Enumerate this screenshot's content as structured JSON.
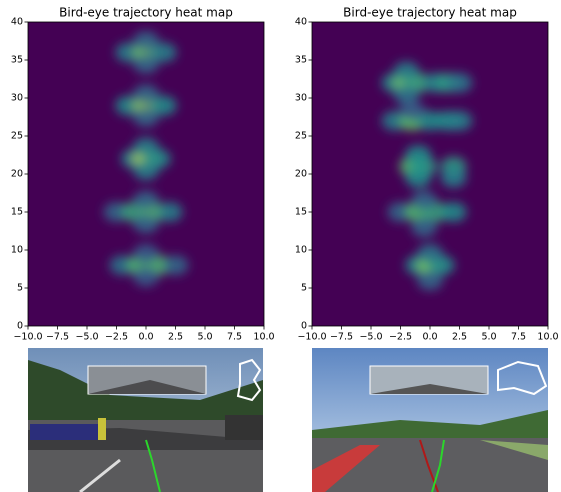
{
  "chart_data": [
    {
      "type": "heatmap",
      "title": "Bird-eye trajectory heat map",
      "colormap": "viridis",
      "x": [
        -1.5,
        0,
        1.5,
        0,
        0,
        -1.5,
        0,
        1.5,
        0,
        0,
        -1,
        0,
        1,
        0,
        0,
        -2.5,
        -1,
        0.5,
        2,
        0,
        0,
        -2,
        -0.5,
        1,
        2.5,
        0,
        0
      ],
      "y": [
        36,
        36,
        36,
        37.5,
        34.5,
        29,
        29,
        29,
        30.5,
        27.5,
        22,
        22,
        22,
        23.5,
        20.5,
        15,
        15,
        15,
        15,
        16.5,
        13.5,
        8,
        8,
        8,
        8,
        9.5,
        6.5
      ],
      "values": [
        0.45,
        0.8,
        0.45,
        0.35,
        0.35,
        0.5,
        0.85,
        0.5,
        0.35,
        0.35,
        0.5,
        0.9,
        0.5,
        0.45,
        0.45,
        0.35,
        0.6,
        0.75,
        0.45,
        0.35,
        0.35,
        0.4,
        0.7,
        0.7,
        0.35,
        0.3,
        0.3
      ],
      "xlim": [
        -10,
        10
      ],
      "ylim": [
        0,
        40
      ],
      "xticks": [
        {
          "value": -10,
          "label": "−10.0"
        },
        {
          "value": -7.5,
          "label": "−7.5"
        },
        {
          "value": -5,
          "label": "−5.0"
        },
        {
          "value": -2.5,
          "label": "−2.5"
        },
        {
          "value": 0,
          "label": "0.0"
        },
        {
          "value": 2.5,
          "label": "2.5"
        },
        {
          "value": 5,
          "label": "5.0"
        },
        {
          "value": 7.5,
          "label": "7.5"
        },
        {
          "value": 10,
          "label": "10.0"
        }
      ],
      "yticks": [
        0,
        5,
        10,
        15,
        20,
        25,
        30,
        35,
        40
      ]
    },
    {
      "type": "heatmap",
      "title": "Bird-eye trajectory heat map",
      "colormap": "viridis",
      "x": [
        -3,
        -2,
        -1,
        0.5,
        1.5,
        2.5,
        -2,
        -2,
        -3,
        -1.5,
        0,
        1.5,
        2.5,
        -1.5,
        -1.5,
        -0.5,
        -1,
        -1,
        2,
        2,
        -2.5,
        -1,
        0.5,
        2,
        -0.5,
        -0.5,
        -1,
        0,
        1,
        0,
        0
      ],
      "y": [
        32,
        32,
        32,
        32,
        32,
        32,
        33.5,
        30.5,
        27,
        27,
        27,
        27,
        27,
        28.3,
        21,
        21,
        22.5,
        19.5,
        21,
        19.5,
        15,
        15,
        15,
        15,
        16.5,
        13,
        8,
        8,
        8,
        9.5,
        6
      ],
      "values": [
        0.5,
        0.8,
        0.6,
        0.45,
        0.55,
        0.4,
        0.45,
        0.4,
        0.45,
        0.75,
        0.5,
        0.5,
        0.45,
        0.3,
        0.7,
        0.55,
        0.5,
        0.5,
        0.55,
        0.45,
        0.35,
        0.7,
        0.6,
        0.5,
        0.35,
        0.35,
        0.5,
        0.8,
        0.5,
        0.4,
        0.35
      ],
      "xlim": [
        -10,
        10
      ],
      "ylim": [
        0,
        40
      ],
      "xticks": [
        {
          "value": -10,
          "label": "−10.0"
        },
        {
          "value": -7.5,
          "label": "−7.5"
        },
        {
          "value": -5,
          "label": "−5.0"
        },
        {
          "value": -2.5,
          "label": "−2.5"
        },
        {
          "value": 0,
          "label": "0.0"
        },
        {
          "value": 2.5,
          "label": "2.5"
        },
        {
          "value": 5,
          "label": "5.0"
        },
        {
          "value": 7.5,
          "label": "7.5"
        },
        {
          "value": 10,
          "label": "10.0"
        }
      ],
      "yticks": [
        0,
        5,
        10,
        15,
        20,
        25,
        30,
        35,
        40
      ]
    }
  ]
}
